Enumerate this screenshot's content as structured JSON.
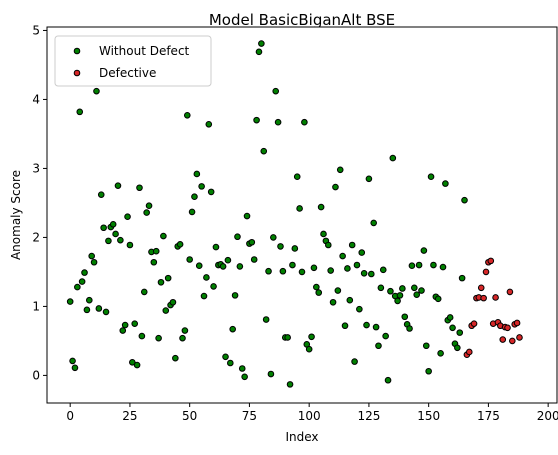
{
  "chart_data": {
    "type": "scatter",
    "title": "Model BasicBiganAlt BSE",
    "xlabel": "Index",
    "ylabel": "Anomaly Score",
    "xlim": [
      -9.7,
      203.7
    ],
    "ylim": [
      -0.4,
      5.05
    ],
    "xticks": [
      0,
      25,
      50,
      75,
      100,
      125,
      150,
      175,
      200
    ],
    "yticks": [
      0,
      1,
      2,
      3,
      4,
      5
    ],
    "grid": false,
    "legend_position": "top-left",
    "series": [
      {
        "name": "Without Defect",
        "color": "#008000",
        "points": [
          [
            0,
            1.07
          ],
          [
            1,
            0.21
          ],
          [
            2,
            0.11
          ],
          [
            3,
            1.28
          ],
          [
            4,
            3.82
          ],
          [
            5,
            1.36
          ],
          [
            6,
            1.49
          ],
          [
            7,
            0.95
          ],
          [
            8,
            1.09
          ],
          [
            9,
            1.73
          ],
          [
            10,
            1.64
          ],
          [
            11,
            4.12
          ],
          [
            12,
            0.97
          ],
          [
            13,
            2.62
          ],
          [
            14,
            2.14
          ],
          [
            15,
            0.92
          ],
          [
            16,
            1.95
          ],
          [
            17,
            2.15
          ],
          [
            18,
            2.19
          ],
          [
            19,
            2.05
          ],
          [
            20,
            2.75
          ],
          [
            21,
            1.96
          ],
          [
            22,
            0.65
          ],
          [
            23,
            0.73
          ],
          [
            24,
            2.3
          ],
          [
            25,
            1.89
          ],
          [
            26,
            0.19
          ],
          [
            27,
            0.75
          ],
          [
            28,
            0.15
          ],
          [
            29,
            2.72
          ],
          [
            30,
            0.57
          ],
          [
            31,
            1.21
          ],
          [
            32,
            2.36
          ],
          [
            33,
            2.46
          ],
          [
            34,
            1.79
          ],
          [
            35,
            1.64
          ],
          [
            36,
            1.8
          ],
          [
            37,
            0.54
          ],
          [
            38,
            1.35
          ],
          [
            39,
            2.02
          ],
          [
            40,
            0.94
          ],
          [
            41,
            1.41
          ],
          [
            42,
            1.02
          ],
          [
            43,
            1.06
          ],
          [
            44,
            0.25
          ],
          [
            45,
            1.87
          ],
          [
            46,
            1.9
          ],
          [
            47,
            0.54
          ],
          [
            48,
            0.65
          ],
          [
            49,
            3.77
          ],
          [
            50,
            1.68
          ],
          [
            51,
            2.37
          ],
          [
            52,
            2.59
          ],
          [
            53,
            2.92
          ],
          [
            54,
            1.59
          ],
          [
            55,
            2.74
          ],
          [
            56,
            1.15
          ],
          [
            57,
            1.42
          ],
          [
            58,
            3.64
          ],
          [
            59,
            2.66
          ],
          [
            60,
            1.29
          ],
          [
            61,
            1.86
          ],
          [
            62,
            1.6
          ],
          [
            63,
            1.61
          ],
          [
            64,
            1.58
          ],
          [
            65,
            0.27
          ],
          [
            66,
            1.67
          ],
          [
            67,
            0.18
          ],
          [
            68,
            0.67
          ],
          [
            69,
            1.16
          ],
          [
            70,
            2.01
          ],
          [
            71,
            1.58
          ],
          [
            72,
            0.1
          ],
          [
            73,
            -0.02
          ],
          [
            74,
            2.31
          ],
          [
            75,
            1.91
          ],
          [
            76,
            1.93
          ],
          [
            77,
            1.68
          ],
          [
            78,
            3.7
          ],
          [
            79,
            4.69
          ],
          [
            80,
            4.81
          ],
          [
            81,
            3.25
          ],
          [
            82,
            0.81
          ],
          [
            83,
            1.51
          ],
          [
            84,
            0.02
          ],
          [
            85,
            2.0
          ],
          [
            86,
            4.12
          ],
          [
            87,
            3.67
          ],
          [
            88,
            1.87
          ],
          [
            89,
            1.51
          ],
          [
            90,
            0.55
          ],
          [
            91,
            0.55
          ],
          [
            92,
            -0.13
          ],
          [
            93,
            1.6
          ],
          [
            94,
            1.84
          ],
          [
            95,
            2.88
          ],
          [
            96,
            2.42
          ],
          [
            97,
            1.5
          ],
          [
            98,
            3.67
          ],
          [
            99,
            0.45
          ],
          [
            100,
            0.38
          ],
          [
            101,
            0.56
          ],
          [
            102,
            1.56
          ],
          [
            103,
            1.28
          ],
          [
            104,
            1.2
          ],
          [
            105,
            2.44
          ],
          [
            106,
            2.05
          ],
          [
            107,
            1.95
          ],
          [
            108,
            1.89
          ],
          [
            109,
            1.52
          ],
          [
            110,
            1.06
          ],
          [
            111,
            2.73
          ],
          [
            112,
            1.23
          ],
          [
            113,
            2.98
          ],
          [
            114,
            1.73
          ],
          [
            115,
            0.72
          ],
          [
            116,
            1.55
          ],
          [
            117,
            1.09
          ],
          [
            118,
            1.89
          ],
          [
            119,
            0.2
          ],
          [
            120,
            1.6
          ],
          [
            121,
            0.96
          ],
          [
            122,
            1.78
          ],
          [
            123,
            1.48
          ],
          [
            124,
            0.73
          ],
          [
            125,
            2.85
          ],
          [
            126,
            1.47
          ],
          [
            127,
            2.21
          ],
          [
            128,
            0.7
          ],
          [
            129,
            0.43
          ],
          [
            130,
            1.27
          ],
          [
            131,
            1.53
          ],
          [
            132,
            0.57
          ],
          [
            133,
            -0.07
          ],
          [
            134,
            1.22
          ],
          [
            135,
            3.15
          ],
          [
            136,
            1.15
          ],
          [
            137,
            1.08
          ],
          [
            138,
            1.16
          ],
          [
            139,
            1.26
          ],
          [
            140,
            0.85
          ],
          [
            141,
            0.74
          ],
          [
            142,
            0.68
          ],
          [
            143,
            1.59
          ],
          [
            144,
            1.27
          ],
          [
            145,
            1.17
          ],
          [
            146,
            1.6
          ],
          [
            147,
            1.23
          ],
          [
            148,
            1.81
          ],
          [
            149,
            0.43
          ],
          [
            150,
            0.06
          ],
          [
            151,
            2.88
          ],
          [
            152,
            1.6
          ],
          [
            153,
            1.14
          ],
          [
            154,
            1.11
          ],
          [
            155,
            0.32
          ],
          [
            156,
            1.57
          ],
          [
            157,
            2.78
          ],
          [
            158,
            0.8
          ],
          [
            159,
            0.84
          ],
          [
            160,
            0.69
          ],
          [
            161,
            0.46
          ],
          [
            162,
            0.4
          ],
          [
            163,
            0.62
          ],
          [
            164,
            1.41
          ],
          [
            165,
            2.54
          ]
        ]
      },
      {
        "name": "Defective",
        "color": "#d62728",
        "points": [
          [
            166,
            0.3
          ],
          [
            167,
            0.34
          ],
          [
            168,
            0.72
          ],
          [
            169,
            0.75
          ],
          [
            170,
            1.12
          ],
          [
            171,
            1.13
          ],
          [
            172,
            1.27
          ],
          [
            173,
            1.12
          ],
          [
            174,
            1.5
          ],
          [
            175,
            1.64
          ],
          [
            176,
            1.66
          ],
          [
            177,
            0.75
          ],
          [
            178,
            1.13
          ],
          [
            179,
            0.77
          ],
          [
            180,
            0.72
          ],
          [
            181,
            0.52
          ],
          [
            182,
            0.7
          ],
          [
            183,
            0.69
          ],
          [
            184,
            1.21
          ],
          [
            185,
            0.5
          ],
          [
            186,
            0.74
          ],
          [
            187,
            0.76
          ],
          [
            188,
            0.55
          ]
        ]
      }
    ]
  }
}
